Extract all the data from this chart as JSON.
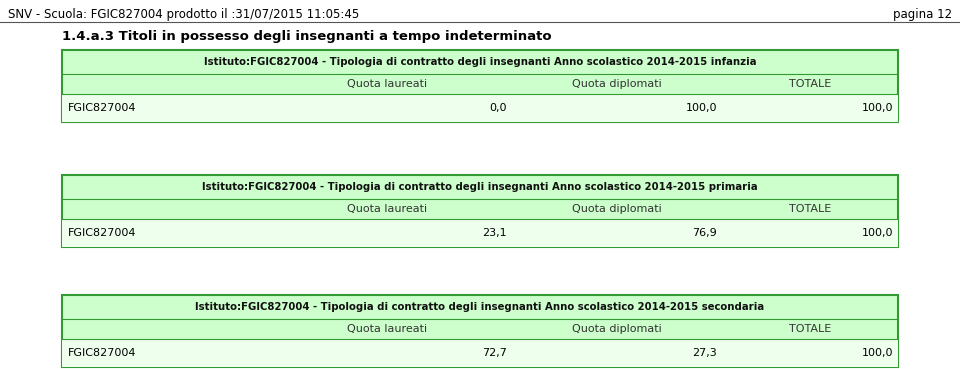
{
  "header_left": "SNV - Scuola: FGIC827004 prodotto il :31/07/2015 11:05:45",
  "header_right": "pagina 12",
  "section_title": "1.4.a.3 Titoli in possesso degli insegnanti a tempo indeterminato",
  "tables": [
    {
      "title": "Istituto:FGIC827004 - Tipologia di contratto degli insegnanti Anno scolastico 2014-2015 infanzia",
      "col_headers": [
        "",
        "Quota laureati",
        "Quota diplomati",
        "TOTALE"
      ],
      "row_label": "FGIC827004",
      "values": [
        "0,0",
        "100,0",
        "100,0"
      ]
    },
    {
      "title": "Istituto:FGIC827004 - Tipologia di contratto degli insegnanti Anno scolastico 2014-2015 primaria",
      "col_headers": [
        "",
        "Quota laureati",
        "Quota diplomati",
        "TOTALE"
      ],
      "row_label": "FGIC827004",
      "values": [
        "23,1",
        "76,9",
        "100,0"
      ]
    },
    {
      "title": "Istituto:FGIC827004 - Tipologia di contratto degli insegnanti Anno scolastico 2014-2015 secondaria",
      "col_headers": [
        "",
        "Quota laureati",
        "Quota diplomati",
        "TOTALE"
      ],
      "row_label": "FGIC827004",
      "values": [
        "72,7",
        "27,3",
        "100,0"
      ]
    }
  ],
  "bg_color": "#ffffff",
  "table_header_bg": "#ccffcc",
  "table_row_bg": "#eeffee",
  "table_border_color": "#339933",
  "fig_width": 9.6,
  "fig_height": 3.69,
  "dpi": 100
}
